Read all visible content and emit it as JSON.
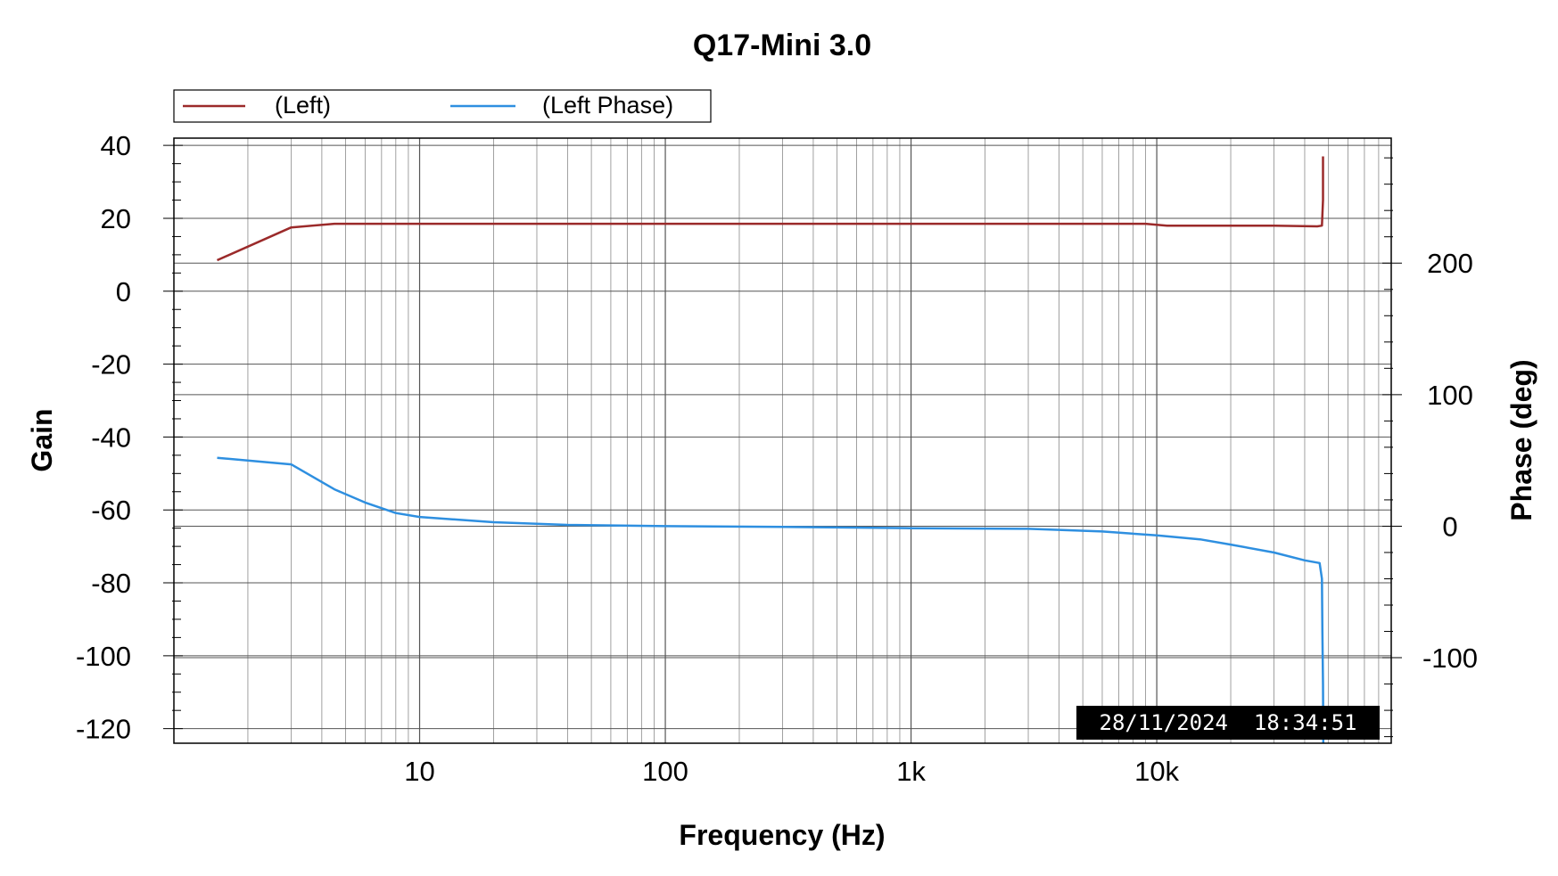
{
  "chart_data": {
    "type": "line",
    "title": "Q17-Mini 3.0",
    "xlabel": "Frequency (Hz)",
    "ylabel": "Gain",
    "y2label": "Phase (deg)",
    "x_scale": "log",
    "xlim": [
      1,
      90000
    ],
    "ylim": [
      -124,
      42
    ],
    "y2lim": [
      -165,
      295
    ],
    "x_ticks": [
      {
        "value": 10,
        "label": "10"
      },
      {
        "value": 100,
        "label": "100"
      },
      {
        "value": 1000,
        "label": "1k"
      },
      {
        "value": 10000,
        "label": "10k"
      }
    ],
    "y_ticks": [
      {
        "value": 40,
        "label": "40"
      },
      {
        "value": 20,
        "label": "20"
      },
      {
        "value": 0,
        "label": "0"
      },
      {
        "value": -20,
        "label": "-20"
      },
      {
        "value": -40,
        "label": "-40"
      },
      {
        "value": -60,
        "label": "-60"
      },
      {
        "value": -80,
        "label": "-80"
      },
      {
        "value": -100,
        "label": "-100"
      },
      {
        "value": -120,
        "label": "-120"
      }
    ],
    "y2_ticks": [
      {
        "value": 200,
        "label": "200"
      },
      {
        "value": 100,
        "label": "100"
      },
      {
        "value": 0,
        "label": "0"
      },
      {
        "value": -100,
        "label": "-100"
      }
    ],
    "grid": true,
    "legend_position": "top-left",
    "series": [
      {
        "name": "(Left)",
        "axis": "left",
        "color": "#9b2a2a",
        "x": [
          1.5,
          3,
          4.5,
          10,
          100,
          1000,
          9000,
          11000,
          30000,
          45000,
          47000,
          47500,
          47500
        ],
        "y": [
          8.5,
          17.5,
          18.5,
          18.5,
          18.5,
          18.5,
          18.5,
          18.0,
          18.0,
          17.8,
          18.0,
          25,
          37
        ]
      },
      {
        "name": "(Left Phase)",
        "axis": "right",
        "color": "#2e8fe0",
        "x": [
          1.5,
          3,
          4.5,
          6,
          8,
          10,
          20,
          40,
          100,
          300,
          1000,
          3000,
          6000,
          10000,
          15000,
          20000,
          30000,
          40000,
          46000,
          47000,
          47200,
          47500,
          47600
        ],
        "y": [
          52,
          47,
          28,
          18,
          10,
          7,
          3,
          1,
          0,
          -0.5,
          -1.5,
          -2,
          -4,
          -7,
          -10,
          -14,
          -20,
          -26,
          -28,
          -40,
          -80,
          -120,
          -165
        ]
      }
    ],
    "annotations": [
      {
        "text": "28/11/2024  18:34:51",
        "position": "bottom-right"
      }
    ]
  }
}
